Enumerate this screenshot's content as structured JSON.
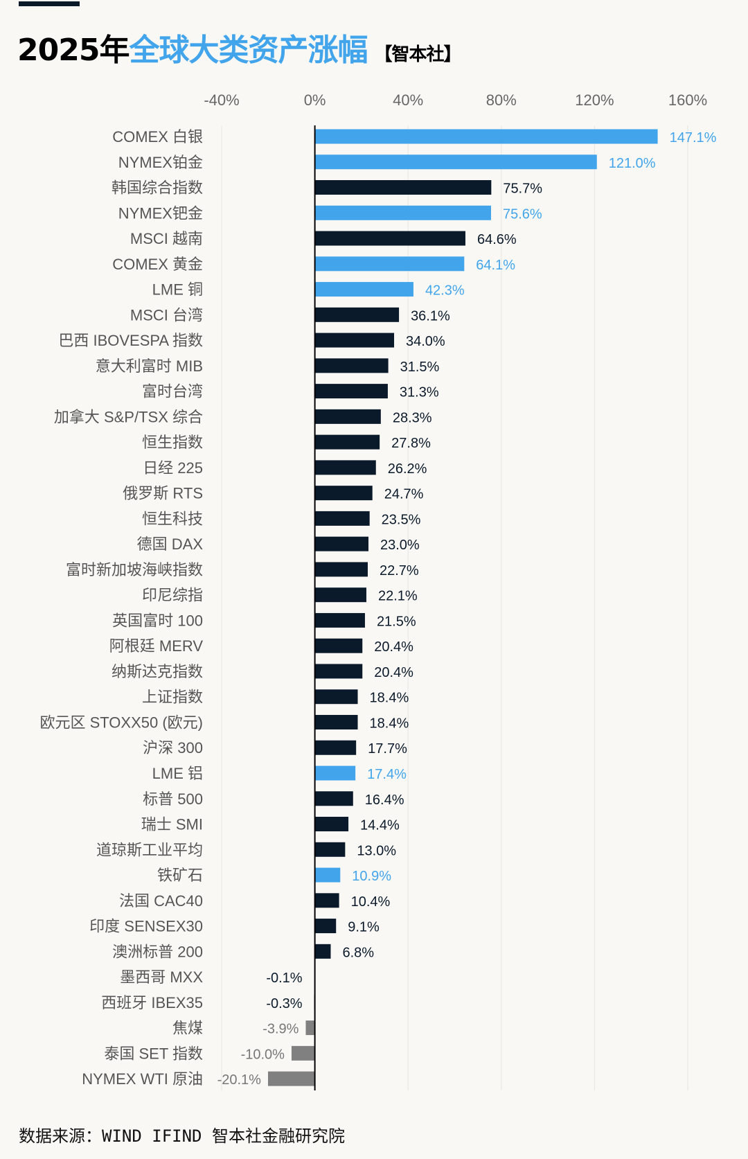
{
  "header": {
    "title_year": "2025年",
    "title_highlight": "全球大类资产涨幅",
    "title_tag": "【智本社】"
  },
  "footer": {
    "source": "数据来源：WIND IFIND 智本社金融研究院"
  },
  "colors": {
    "commodity": "#42a5eb",
    "equity": "#0b1a2a",
    "negative": "#808080",
    "background": "#f9f8f5"
  },
  "chart_data": {
    "type": "bar",
    "orientation": "horizontal",
    "xlim": [
      -40,
      160
    ],
    "xticks": [
      "-40%",
      "0%",
      "40%",
      "80%",
      "120%",
      "160%"
    ],
    "xtick_values": [
      -40,
      0,
      40,
      80,
      120,
      160
    ],
    "grid": true,
    "categories": [
      "COMEX 白银",
      "NYMEX铂金",
      "韩国综合指数",
      "NYMEX钯金",
      "MSCI 越南",
      "COMEX 黄金",
      "LME 铜",
      "MSCI 台湾",
      "巴西 IBOVESPA 指数",
      "意大利富时 MIB",
      "富时台湾",
      "加拿大 S&P/TSX 综合",
      "恒生指数",
      "日经 225",
      "俄罗斯 RTS",
      "恒生科技",
      "德国 DAX",
      "富时新加坡海峡指数",
      "印尼综指",
      "英国富时 100",
      "阿根廷 MERV",
      "纳斯达克指数",
      "上证指数",
      "欧元区 STOXX50 (欧元)",
      "沪深 300",
      "LME 铝",
      "标普 500",
      "瑞士 SMI",
      "道琼斯工业平均",
      "铁矿石",
      "法国 CAC40",
      "印度 SENSEX30",
      "澳洲标普 200",
      "墨西哥 MXX",
      "西班牙 IBEX35",
      "焦煤",
      "泰国 SET 指数",
      "NYMEX WTI 原油"
    ],
    "values": [
      147.1,
      121.0,
      75.7,
      75.6,
      64.6,
      64.1,
      42.3,
      36.1,
      34.0,
      31.5,
      31.3,
      28.3,
      27.8,
      26.2,
      24.7,
      23.5,
      23.0,
      22.7,
      22.1,
      21.5,
      20.4,
      20.4,
      18.4,
      18.4,
      17.7,
      17.4,
      16.4,
      14.4,
      13.0,
      10.9,
      10.4,
      9.1,
      6.8,
      -0.1,
      -0.3,
      -3.9,
      -10.0,
      -20.1
    ],
    "labels": [
      "147.1%",
      "121.0%",
      "75.7%",
      "75.6%",
      "64.6%",
      "64.1%",
      "42.3%",
      "36.1%",
      "34.0%",
      "31.5%",
      "31.3%",
      "28.3%",
      "27.8%",
      "26.2%",
      "24.7%",
      "23.5%",
      "23.0%",
      "22.7%",
      "22.1%",
      "21.5%",
      "20.4%",
      "20.4%",
      "18.4%",
      "18.4%",
      "17.7%",
      "17.4%",
      "16.4%",
      "14.4%",
      "13.0%",
      "10.9%",
      "10.4%",
      "9.1%",
      "6.8%",
      "-0.1%",
      "-0.3%",
      "-3.9%",
      "-10.0%",
      "-20.1%"
    ],
    "groups": [
      "commodity",
      "commodity",
      "equity",
      "commodity",
      "equity",
      "commodity",
      "commodity",
      "equity",
      "equity",
      "equity",
      "equity",
      "equity",
      "equity",
      "equity",
      "equity",
      "equity",
      "equity",
      "equity",
      "equity",
      "equity",
      "equity",
      "equity",
      "equity",
      "equity",
      "equity",
      "commodity",
      "equity",
      "equity",
      "equity",
      "commodity",
      "equity",
      "equity",
      "equity",
      "equity",
      "equity",
      "negative",
      "negative",
      "negative"
    ]
  }
}
